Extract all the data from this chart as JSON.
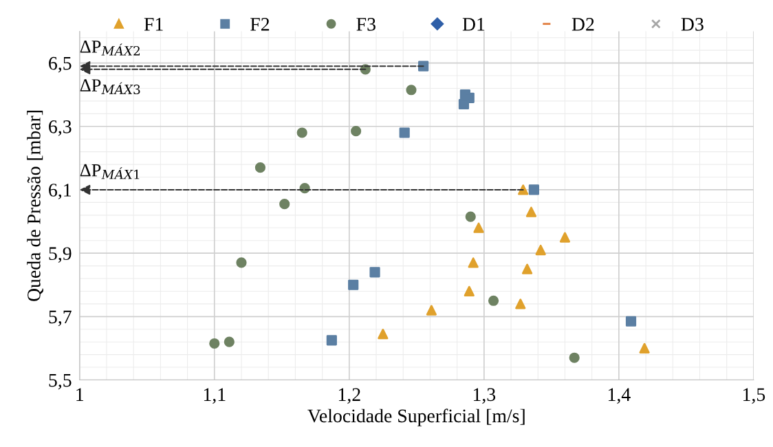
{
  "chart_data": {
    "type": "scatter",
    "xlabel": "Velocidade Superficial [m/s]",
    "ylabel": "Queda de Pressão [mbar]",
    "xlim": [
      1,
      1.5
    ],
    "xticks": [
      {
        "value": 1,
        "label": "1"
      },
      {
        "value": 1.1,
        "label": "1,1"
      },
      {
        "value": 1.2,
        "label": "1,2"
      },
      {
        "value": 1.3,
        "label": "1,3"
      },
      {
        "value": 1.4,
        "label": "1,4"
      },
      {
        "value": 1.5,
        "label": "1,5"
      }
    ],
    "ylim": [
      5.5,
      6.6
    ],
    "yticks": [
      {
        "value": 5.5,
        "label": "5,5"
      },
      {
        "value": 5.7,
        "label": "5,7"
      },
      {
        "value": 5.9,
        "label": "5,9"
      },
      {
        "value": 6.1,
        "label": "6,1"
      },
      {
        "value": 6.3,
        "label": "6,3"
      },
      {
        "value": 6.5,
        "label": "6,5"
      }
    ],
    "grid": true,
    "legend": "top",
    "series": [
      {
        "name": "F1",
        "color": "#e0a12c",
        "marker": "triangle",
        "x": [
          1.329,
          1.335,
          1.296,
          1.36,
          1.342,
          1.292,
          1.332,
          1.289,
          1.327,
          1.261,
          1.225,
          1.419
        ],
        "values": [
          6.1,
          6.03,
          5.98,
          5.95,
          5.91,
          5.87,
          5.85,
          5.78,
          5.74,
          5.72,
          5.645,
          5.6
        ]
      },
      {
        "name": "F2",
        "color": "#5b7fa3",
        "marker": "square",
        "x": [
          1.255,
          1.286,
          1.289,
          1.285,
          1.241,
          1.337,
          1.219,
          1.203,
          1.409,
          1.187
        ],
        "values": [
          6.49,
          6.4,
          6.39,
          6.37,
          6.28,
          6.1,
          5.84,
          5.8,
          5.685,
          5.625
        ]
      },
      {
        "name": "F3",
        "color": "#6e8262",
        "marker": "circle",
        "x": [
          1.212,
          1.246,
          1.165,
          1.205,
          1.134,
          1.167,
          1.152,
          1.29,
          1.12,
          1.307,
          1.1,
          1.111,
          1.367
        ],
        "values": [
          6.48,
          6.415,
          6.28,
          6.285,
          6.17,
          6.105,
          6.055,
          6.015,
          5.87,
          5.75,
          5.615,
          5.62,
          5.57
        ]
      },
      {
        "name": "D1",
        "color": "#2f5fa8",
        "marker": "diamond"
      },
      {
        "name": "D2",
        "color": "#e07a3a",
        "marker": "dash"
      },
      {
        "name": "D3",
        "color": "#a6a6a6",
        "marker": "cross"
      }
    ],
    "annotations": [
      {
        "text": "ΔP$_{MÁX2}$",
        "x": 1.255,
        "y": 6.49
      },
      {
        "text": "ΔP$_{MÁX3}$",
        "x": 1.212,
        "y": 6.48
      },
      {
        "text": "ΔP$_{MÁX1}$",
        "x": 1.329,
        "y": 6.1
      }
    ]
  }
}
